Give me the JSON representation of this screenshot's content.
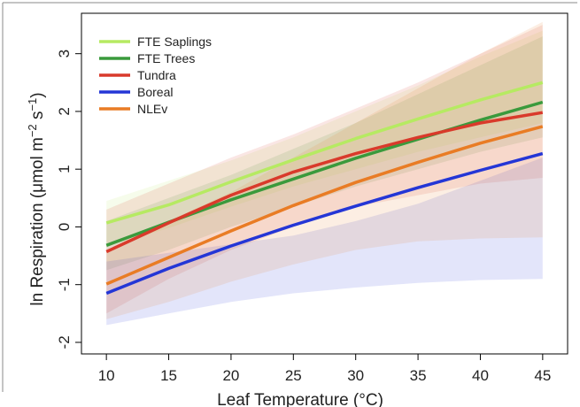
{
  "chart_data": {
    "type": "line",
    "xlabel": "Leaf Temperature (°C)",
    "ylabel_main": "ln Respiration (",
    "ylabel_mu": "μ",
    "ylabel_unit": "mol m",
    "ylabel_exp1": "−2",
    "ylabel_s": " s",
    "ylabel_exp2": "−1",
    "ylabel_close": ")",
    "xlim": [
      8,
      47
    ],
    "ylim": [
      -2.2,
      3.7
    ],
    "x_ticks": [
      10,
      15,
      20,
      25,
      30,
      35,
      40,
      45
    ],
    "x_tick_labels": [
      "10",
      "15",
      "20",
      "25",
      "30",
      "35",
      "40",
      "45"
    ],
    "y_ticks": [
      -2,
      -1,
      0,
      1,
      2,
      3
    ],
    "y_tick_labels": [
      "-2",
      "-1",
      "0",
      "1",
      "2",
      "3"
    ],
    "legend_position": "top-left",
    "series": [
      {
        "name": "FTE Saplings",
        "color": "#b6ea62",
        "x": [
          10,
          15,
          20,
          25,
          30,
          35,
          40,
          45
        ],
        "y": [
          0.07,
          0.38,
          0.78,
          1.16,
          1.53,
          1.87,
          2.2,
          2.5
        ],
        "band_lower": [
          -0.35,
          -0.02,
          0.35,
          0.7,
          1.0,
          1.3,
          1.55,
          1.8
        ],
        "band_upper": [
          0.45,
          0.8,
          1.15,
          1.55,
          2.0,
          2.45,
          2.95,
          3.4
        ]
      },
      {
        "name": "FTE Trees",
        "color": "#3a9a3c",
        "x": [
          10,
          15,
          20,
          25,
          30,
          35,
          40,
          45
        ],
        "y": [
          -0.32,
          0.08,
          0.47,
          0.83,
          1.19,
          1.52,
          1.85,
          2.16
        ],
        "band_lower": [
          -0.75,
          -0.4,
          0.0,
          0.35,
          0.7,
          1.0,
          1.3,
          1.55
        ],
        "band_upper": [
          0.1,
          0.5,
          0.9,
          1.35,
          1.8,
          2.3,
          2.8,
          3.3
        ]
      },
      {
        "name": "Tundra",
        "color": "#d93a2b",
        "x": [
          10,
          15,
          20,
          25,
          30,
          35,
          40,
          45
        ],
        "y": [
          -0.43,
          0.07,
          0.55,
          0.95,
          1.27,
          1.55,
          1.8,
          1.98
        ],
        "band_lower": [
          -1.5,
          -0.9,
          -0.4,
          0.0,
          0.35,
          0.55,
          0.75,
          0.85
        ],
        "band_upper": [
          0.3,
          0.75,
          1.2,
          1.6,
          2.05,
          2.5,
          3.0,
          3.5
        ]
      },
      {
        "name": "Boreal",
        "color": "#2436d6",
        "x": [
          10,
          15,
          20,
          25,
          30,
          35,
          40,
          45
        ],
        "y": [
          -1.15,
          -0.72,
          -0.33,
          0.03,
          0.36,
          0.68,
          0.98,
          1.27
        ],
        "band_lower": [
          -1.7,
          -1.5,
          -1.3,
          -1.15,
          -1.05,
          -0.97,
          -0.92,
          -0.9
        ],
        "band_upper": [
          -0.6,
          -0.45,
          -0.3,
          -0.15,
          0.1,
          0.4,
          0.8,
          1.2
        ]
      },
      {
        "name": "NLEv",
        "color": "#e97c25",
        "x": [
          10,
          15,
          20,
          25,
          30,
          35,
          40,
          45
        ],
        "y": [
          -0.99,
          -0.53,
          -0.07,
          0.37,
          0.77,
          1.12,
          1.45,
          1.74
        ],
        "band_lower": [
          -1.6,
          -1.3,
          -0.95,
          -0.65,
          -0.4,
          -0.25,
          -0.2,
          -0.18
        ],
        "band_upper": [
          -0.4,
          0.1,
          0.6,
          1.2,
          1.8,
          2.4,
          3.0,
          3.55
        ]
      }
    ]
  }
}
